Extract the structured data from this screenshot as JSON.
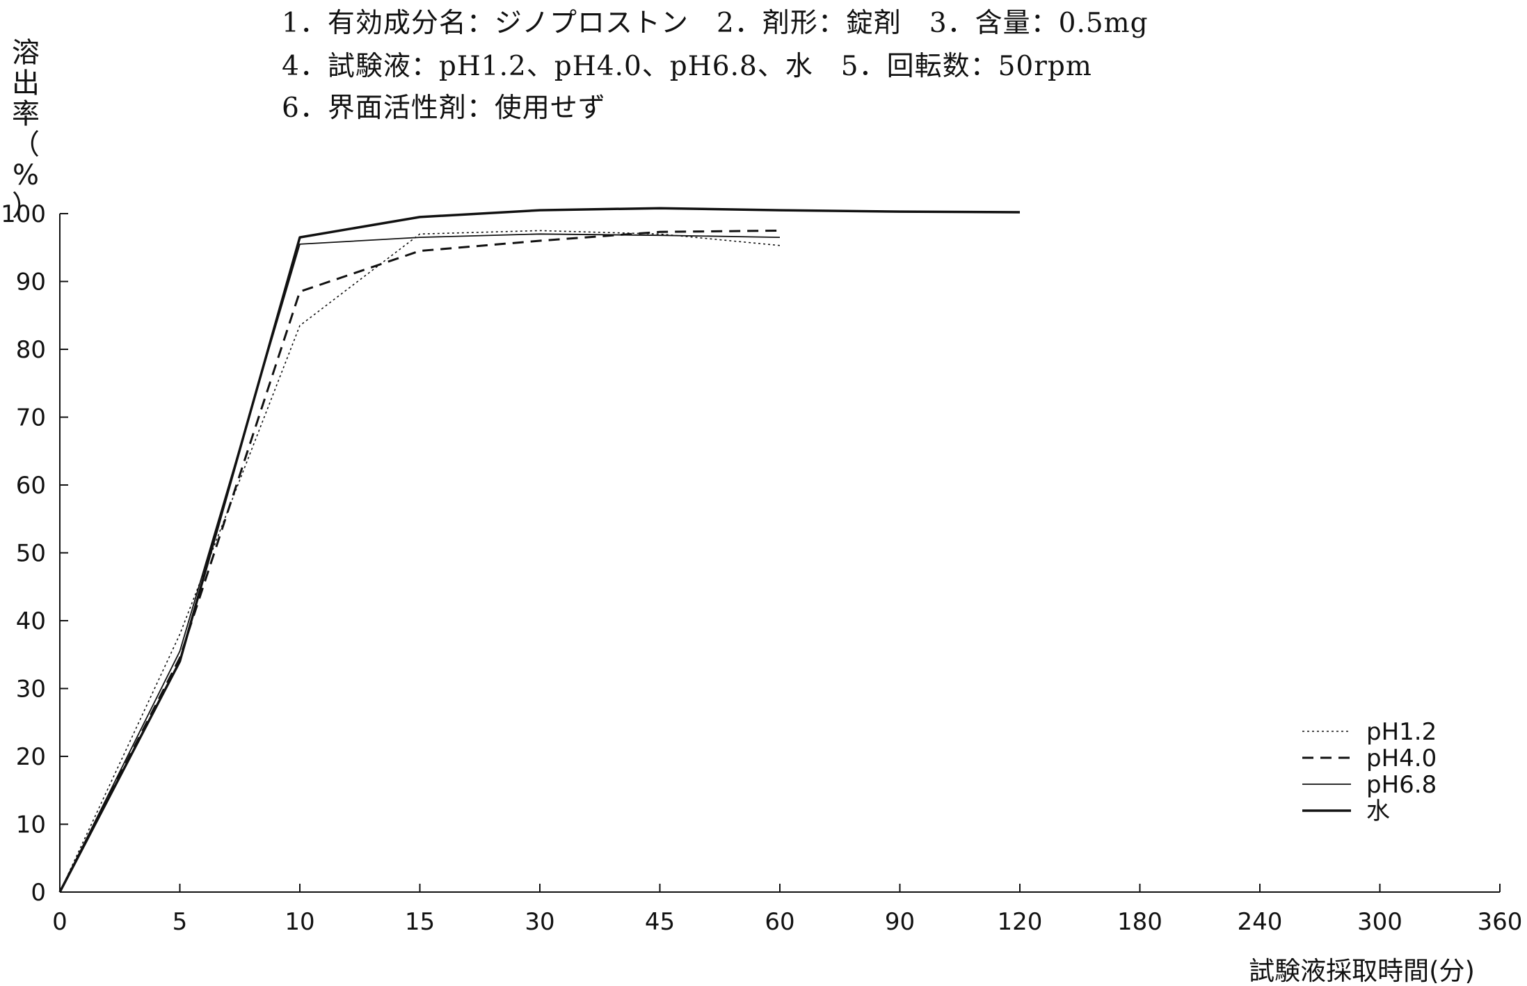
{
  "header": {
    "line1": "1．有効成分名：ジノプロストン　2．剤形：錠剤　3．含量：0.5mg",
    "line2": "4．試験液：pH1.2、pH4.0、pH6.8、水　5．回転数：50rpm",
    "line3": "6．界面活性剤：使用せず"
  },
  "chart_data": {
    "type": "line",
    "title": "",
    "ylabel": "溶出率（%）",
    "xlabel": "試験液採取時間(分)",
    "ylim": [
      0,
      100
    ],
    "y_ticks": [
      "0",
      "10",
      "20",
      "30",
      "40",
      "50",
      "60",
      "70",
      "80",
      "90",
      "100"
    ],
    "categories": [
      "0",
      "5",
      "10",
      "15",
      "30",
      "45",
      "60",
      "90",
      "120",
      "180",
      "240",
      "300",
      "360"
    ],
    "grid": false,
    "legend_position": "bottom-right",
    "series": [
      {
        "name": "pH1.2",
        "style": "dotted",
        "x": [
          "0",
          "5",
          "10",
          "15",
          "30",
          "45",
          "60"
        ],
        "values": [
          0,
          38,
          83.5,
          97,
          97.5,
          97,
          95.3
        ]
      },
      {
        "name": "pH4.0",
        "style": "dashed",
        "x": [
          "0",
          "5",
          "10",
          "15",
          "30",
          "45",
          "60"
        ],
        "values": [
          0,
          34.5,
          88.5,
          94.5,
          96,
          97.3,
          97.5
        ]
      },
      {
        "name": "pH6.8",
        "style": "thin",
        "x": [
          "0",
          "5",
          "10",
          "15",
          "30",
          "45",
          "60"
        ],
        "values": [
          0,
          35.5,
          95.5,
          96.5,
          97,
          96.8,
          96.5
        ]
      },
      {
        "name": "水",
        "style": "thick",
        "x": [
          "0",
          "5",
          "10",
          "15",
          "30",
          "45",
          "60",
          "90",
          "120"
        ],
        "values": [
          0,
          34,
          96.5,
          99.5,
          100.5,
          100.8,
          100.5,
          100.3,
          100.2
        ]
      }
    ]
  }
}
